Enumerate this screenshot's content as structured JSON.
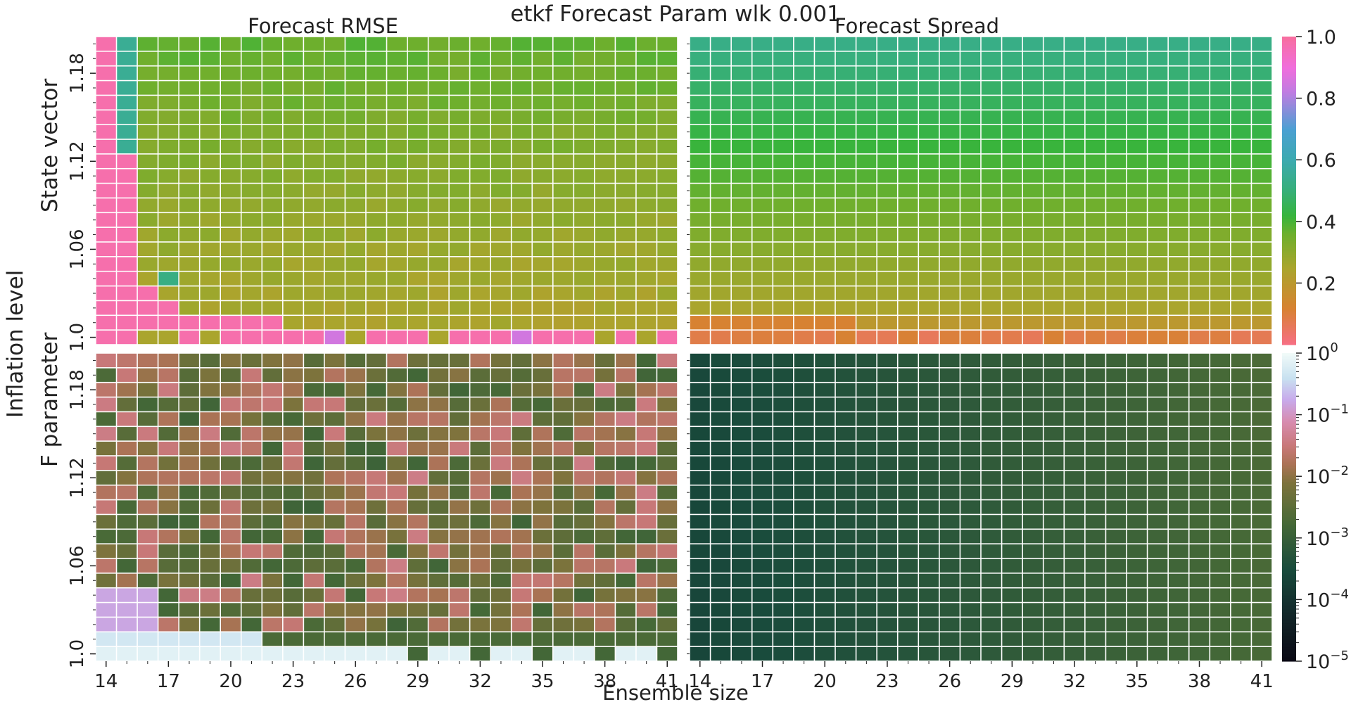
{
  "title": "etkf Forecast Param wlk 0.001",
  "chart_data": [
    {
      "type": "heatmap",
      "title": "Forecast RMSE",
      "row": "State vector",
      "x_ticks": [
        "14",
        "17",
        "20",
        "23",
        "26",
        "29",
        "32",
        "35",
        "38",
        "41"
      ],
      "y_ticks": [
        "1.18",
        "1.12",
        "1.06",
        "1.0"
      ],
      "x_range": [
        14,
        41
      ],
      "y_range": [
        1.0,
        1.2
      ],
      "color_scale": "linear 0–1",
      "summary": "values near 1.0 for ensemble size 14–15 and inflation 1.0–1.01; ~0.25–0.35 elsewhere"
    },
    {
      "type": "heatmap",
      "title": "Forecast Spread",
      "row": "State vector",
      "x_ticks": [
        "14",
        "17",
        "20",
        "23",
        "26",
        "29",
        "32",
        "35",
        "38",
        "41"
      ],
      "x_range": [
        14,
        41
      ],
      "y_range": [
        1.0,
        1.2
      ],
      "color_scale": "linear 0–1",
      "summary": "increases with inflation: ~0.05–0.1 at 1.0 up to ~0.5 at 1.2"
    },
    {
      "type": "heatmap",
      "title": "",
      "row": "F parameter",
      "x_ticks": [
        "14",
        "17",
        "20",
        "23",
        "26",
        "29",
        "32",
        "35",
        "38",
        "41"
      ],
      "y_ticks": [
        "1.18",
        "1.12",
        "1.06",
        "1.0"
      ],
      "x_range": [
        14,
        41
      ],
      "y_range": [
        1.0,
        1.2
      ],
      "color_scale": "log 1e-5 – 1e0",
      "summary": "RMSE ~1e-3 to 1e-1; highest (~0.5) for small ensembles at low inflation"
    },
    {
      "type": "heatmap",
      "title": "",
      "row": "F parameter",
      "x_ticks": [
        "14",
        "17",
        "20",
        "23",
        "26",
        "29",
        "32",
        "35",
        "38",
        "41"
      ],
      "x_range": [
        14,
        41
      ],
      "y_range": [
        1.0,
        1.2
      ],
      "color_scale": "log 1e-5 – 1e0",
      "summary": "spread ~2e-4 to 1e-3, increasing with ensemble size"
    }
  ],
  "colorbar_top": {
    "ticks": [
      "1.0",
      "0.8",
      "0.6",
      "0.4",
      "0.2"
    ]
  },
  "colorbar_bottom": {
    "ticks": [
      "10",
      "10",
      "10",
      "10",
      "10",
      "10"
    ],
    "exps": [
      "0",
      "−1",
      "−2",
      "−3",
      "−4",
      "−5"
    ]
  },
  "labels": {
    "panel_rmse": "Forecast RMSE",
    "panel_spread": "Forecast Spread",
    "row_top": "State vector",
    "row_bottom": "F parameter",
    "outer_y": "Inflation level",
    "x": "Ensemble size"
  }
}
